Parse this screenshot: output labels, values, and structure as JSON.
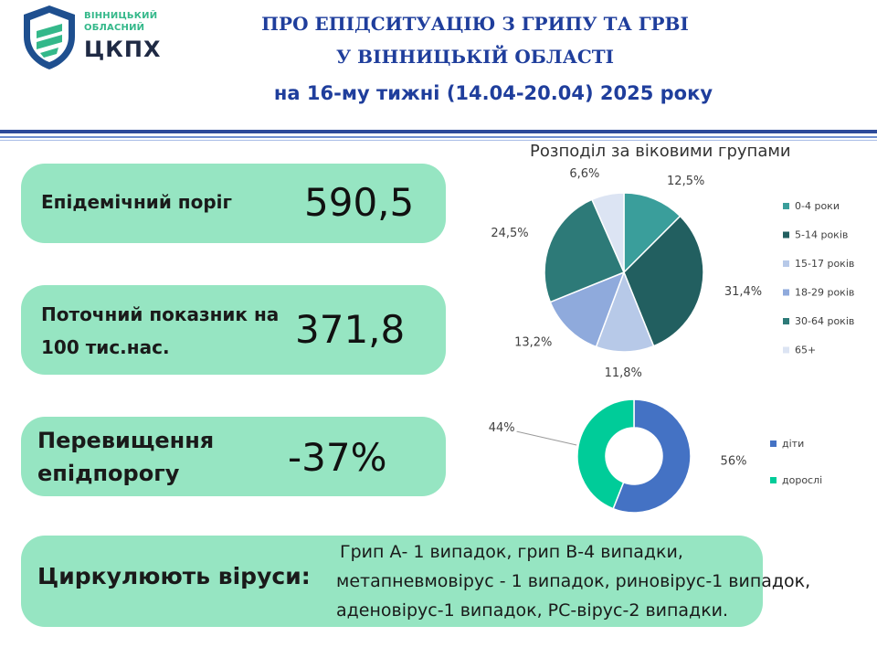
{
  "logo": {
    "line1": "ВІННИЦЬКИЙ",
    "line2": "ОБЛАСНИЙ",
    "abbr": "ЦКПХ"
  },
  "header": {
    "title_line1": "ПРО ЕПІДСИТУАЦІЮ З ГРИПУ ТА ГРВІ",
    "title_line2": "У ВІННИЦЬКІЙ ОБЛАСТІ",
    "subtitle": "на 16-му тижні (14.04-20.04) 2025 року"
  },
  "cards": {
    "threshold_label": "Епідемічний поріг",
    "threshold_value": "590,5",
    "current_label": "Поточний показник на 100 тис.нас.",
    "current_value": "371,8",
    "excess_label": "Перевищення епідпорогу",
    "excess_value": "-37%",
    "viruses_label": "Циркулюють віруси:",
    "viruses_text": "Грип А- 1 випадок, грип В-4 випадки, метапневмовірус - 1 випадок, риновірус-1 випадок, аденовірус-1  випадок, РС-вірус-2 випадки."
  },
  "colors": {
    "card_bg": "#96e5c2",
    "title_blue": "#1f3e9c"
  },
  "chart_data": [
    {
      "type": "pie",
      "title": "Розподіл за віковими групами",
      "categories": [
        "0-4 роки",
        "5-14 років",
        "15-17 років",
        "18-29 років",
        "30-64 років",
        "65+"
      ],
      "values": [
        12.5,
        31.4,
        11.8,
        13.2,
        24.5,
        6.6
      ],
      "labels": [
        "12,5%",
        "31,4%",
        "11,8%",
        "13,2%",
        "24,5%",
        "6,6%"
      ],
      "colors": [
        "#3a9e9b",
        "#225f60",
        "#b7c9e8",
        "#8faadc",
        "#2d7a78",
        "#dce4f3"
      ],
      "legend": "right"
    },
    {
      "type": "pie",
      "subtype": "doughnut",
      "title": "",
      "categories": [
        "діти",
        "дорослі"
      ],
      "values": [
        56,
        44
      ],
      "labels": [
        "56%",
        "44%"
      ],
      "colors": [
        "#4472c4",
        "#00cc99"
      ],
      "legend": "right"
    }
  ]
}
